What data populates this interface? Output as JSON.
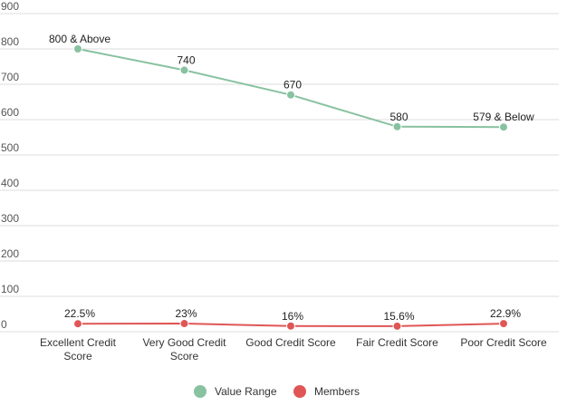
{
  "chart_data": {
    "type": "line",
    "categories": [
      "Excellent Credit Score",
      "Very Good Credit Score",
      "Good Credit Score",
      "Fair Credit Score",
      "Poor Credit Score"
    ],
    "category_lines": [
      [
        "Excellent Credit",
        "Score"
      ],
      [
        "Very Good Credit",
        "Score"
      ],
      [
        "Good Credit Score"
      ],
      [
        "Fair Credit Score"
      ],
      [
        "Poor Credit Score"
      ]
    ],
    "ylim": [
      0,
      900
    ],
    "yticks": [
      0,
      100,
      200,
      300,
      400,
      500,
      600,
      700,
      800,
      900
    ],
    "grid": true,
    "legend_position": "bottom",
    "series": [
      {
        "name": "Value Range",
        "color": "#88c2a0",
        "values": [
          800,
          740,
          670,
          580,
          579
        ],
        "labels": [
          "800 & Above",
          "740",
          "670",
          "580",
          "579 & Below"
        ]
      },
      {
        "name": "Members",
        "color": "#e05656",
        "values": [
          22.5,
          23,
          16,
          15.6,
          22.9
        ],
        "labels": [
          "22.5%",
          "23%",
          "16%",
          "15.6%",
          "22.9%"
        ]
      }
    ]
  }
}
